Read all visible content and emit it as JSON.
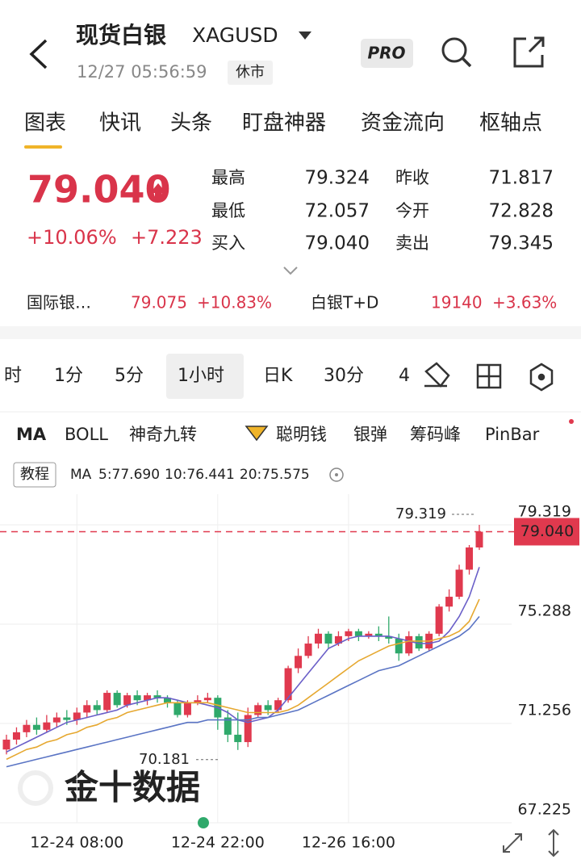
{
  "header": {
    "title": "现货白银",
    "symbol": "XAGUSD",
    "time": "12/27 05:56:59",
    "status": "休市",
    "badge": "PRO"
  },
  "tabs": [
    "图表",
    "快讯",
    "头条",
    "盯盘神器",
    "资金流向",
    "枢轴点"
  ],
  "quote": {
    "price": "79.040",
    "change_pct": "+10.06%",
    "change": "+7.223",
    "stats": [
      {
        "label": "最高",
        "value": "79.324"
      },
      {
        "label": "最低",
        "value": "72.057"
      },
      {
        "label": "买入",
        "value": "79.040"
      },
      {
        "label": "昨收",
        "value": "71.817"
      },
      {
        "label": "今开",
        "value": "72.828"
      },
      {
        "label": "卖出",
        "value": "79.345"
      }
    ]
  },
  "related": [
    {
      "name": "国际银…",
      "price": "79.075",
      "change": "+10.83%"
    },
    {
      "name": "白银T+D",
      "price": "19140",
      "change": "+3.63%"
    }
  ],
  "periods": [
    "时",
    "1分",
    "5分",
    "1小时",
    "日K",
    "30分",
    "4"
  ],
  "indicators": [
    "MA",
    "BOLL",
    "神奇九转",
    "聪明钱",
    "银弹",
    "筹码峰",
    "PinBar"
  ],
  "tutorial": "教程",
  "watermark": "金十数据",
  "chart_data": {
    "type": "candlestick",
    "legend_title": "MA",
    "categories": [
      null,
      null,
      null,
      null,
      null,
      null,
      null,
      "12-24 08:00",
      null,
      null,
      null,
      null,
      null,
      null,
      null,
      null,
      null,
      null,
      null,
      null,
      null,
      "12-24 22:00",
      null,
      null,
      null,
      null,
      null,
      null,
      null,
      null,
      null,
      null,
      null,
      null,
      "12-26 16:00",
      null,
      null,
      null,
      null,
      null,
      null,
      null,
      null,
      null,
      null,
      null,
      null,
      null
    ],
    "open": [
      70.2,
      70.6,
      70.9,
      71.2,
      71.0,
      71.3,
      71.5,
      71.4,
      71.7,
      72.0,
      71.8,
      72.5,
      72.0,
      72.4,
      72.2,
      72.4,
      72.3,
      72.1,
      71.6,
      72.1,
      72.2,
      72.3,
      71.5,
      70.8,
      70.5,
      71.6,
      72.0,
      71.8,
      72.2,
      73.5,
      74.0,
      74.5,
      74.9,
      74.5,
      74.8,
      75.0,
      74.8,
      74.9,
      74.8,
      74.7,
      74.1,
      74.8,
      74.3,
      74.9,
      76.0,
      76.4,
      77.5,
      78.4
    ],
    "high": [
      70.8,
      71.1,
      71.4,
      71.5,
      71.6,
      71.7,
      71.8,
      71.9,
      72.2,
      72.2,
      72.6,
      72.6,
      72.5,
      72.6,
      72.5,
      72.6,
      72.4,
      72.2,
      72.2,
      72.4,
      72.5,
      72.4,
      71.8,
      71.7,
      71.9,
      72.1,
      72.2,
      72.3,
      73.6,
      74.3,
      74.8,
      75.1,
      75.0,
      75.0,
      75.1,
      75.1,
      75.0,
      75.2,
      75.6,
      74.9,
      75.0,
      74.9,
      75.0,
      76.1,
      76.7,
      77.7,
      78.5,
      79.319
    ],
    "low": [
      70.0,
      70.4,
      70.7,
      70.8,
      70.9,
      71.1,
      71.2,
      71.2,
      71.5,
      71.6,
      71.7,
      71.9,
      71.9,
      72.0,
      72.0,
      72.1,
      71.9,
      71.5,
      71.5,
      72.0,
      72.1,
      71.0,
      70.5,
      70.181,
      70.3,
      71.5,
      71.6,
      71.7,
      72.1,
      73.3,
      73.9,
      74.3,
      74.3,
      74.4,
      74.6,
      74.6,
      74.7,
      74.6,
      74.5,
      73.8,
      74.0,
      74.2,
      74.2,
      74.8,
      75.8,
      76.3,
      77.3,
      78.3
    ],
    "close": [
      70.6,
      70.9,
      71.2,
      71.0,
      71.3,
      71.5,
      71.4,
      71.7,
      72.0,
      71.8,
      72.5,
      72.0,
      72.4,
      72.2,
      72.4,
      72.3,
      72.1,
      71.6,
      72.1,
      72.2,
      72.3,
      71.5,
      70.8,
      70.5,
      71.6,
      72.0,
      71.8,
      72.2,
      73.5,
      74.0,
      74.5,
      74.9,
      74.5,
      74.8,
      75.0,
      74.8,
      74.9,
      74.8,
      74.7,
      74.1,
      74.8,
      74.3,
      74.9,
      76.0,
      76.4,
      77.5,
      78.4,
      79.04
    ],
    "series": [
      {
        "name": "5:77.690",
        "color": "#6a5fc8",
        "values": [
          70.1,
          70.3,
          70.5,
          70.7,
          70.9,
          71.1,
          71.3,
          71.4,
          71.5,
          71.6,
          71.7,
          71.8,
          72.0,
          72.1,
          72.2,
          72.3,
          72.3,
          72.2,
          72.1,
          72.1,
          72.0,
          71.9,
          71.7,
          71.4,
          71.3,
          71.4,
          71.5,
          71.8,
          72.3,
          72.8,
          73.3,
          73.8,
          74.3,
          74.5,
          74.7,
          74.8,
          74.8,
          74.8,
          74.8,
          74.7,
          74.6,
          74.5,
          74.5,
          74.6,
          75.0,
          75.6,
          76.4,
          77.6
        ]
      },
      {
        "name": "10:76.441",
        "color": "#e6a830",
        "values": [
          69.8,
          70.0,
          70.2,
          70.3,
          70.5,
          70.6,
          70.8,
          70.9,
          71.1,
          71.2,
          71.4,
          71.5,
          71.7,
          71.8,
          71.9,
          72.0,
          72.1,
          72.1,
          72.1,
          72.1,
          72.1,
          72.0,
          71.9,
          71.8,
          71.7,
          71.7,
          71.7,
          71.7,
          71.8,
          72.0,
          72.3,
          72.6,
          72.9,
          73.2,
          73.5,
          73.8,
          74.0,
          74.2,
          74.4,
          74.5,
          74.6,
          74.6,
          74.6,
          74.7,
          74.8,
          75.0,
          75.4,
          76.3
        ]
      },
      {
        "name": "20:75.575",
        "color": "#5a74c4",
        "values": [
          69.5,
          69.6,
          69.7,
          69.8,
          69.9,
          70.0,
          70.1,
          70.2,
          70.3,
          70.4,
          70.5,
          70.6,
          70.7,
          70.8,
          70.9,
          71.0,
          71.1,
          71.2,
          71.3,
          71.3,
          71.4,
          71.4,
          71.4,
          71.4,
          71.4,
          71.5,
          71.5,
          71.6,
          71.7,
          71.8,
          72.0,
          72.2,
          72.4,
          72.6,
          72.8,
          73.0,
          73.2,
          73.4,
          73.5,
          73.6,
          73.8,
          74.0,
          74.2,
          74.4,
          74.6,
          74.8,
          75.1,
          75.6
        ]
      }
    ],
    "up_color": "#e0394e",
    "down_color": "#2fa96b",
    "ylim": [
      67.225,
      79.319
    ],
    "yticks": [
      67.225,
      71.256,
      75.288,
      79.319
    ],
    "grid": true,
    "price_line": {
      "value": 79.04,
      "label": "79.040"
    },
    "high_marker": 79.319,
    "low_marker": 70.181
  }
}
